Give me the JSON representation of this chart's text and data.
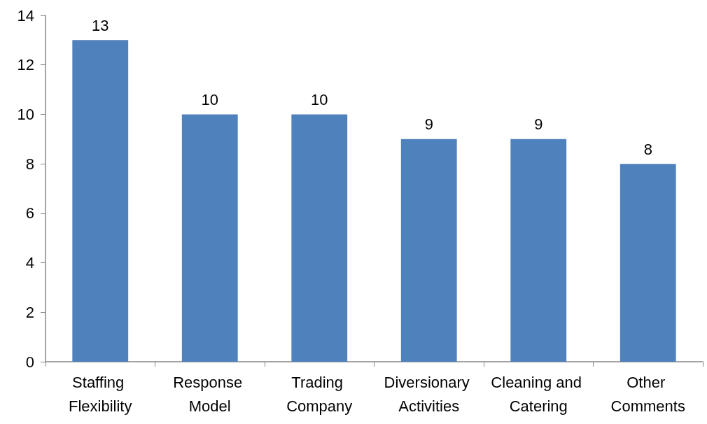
{
  "chart_data": {
    "type": "bar",
    "categories": [
      "Staffing Flexibility",
      "Response Model",
      "Trading Company",
      "Diversionary Activities",
      "Cleaning and Catering",
      "Other Comments"
    ],
    "values": [
      13,
      10,
      10,
      9,
      9,
      8
    ],
    "color": "#4f81bd",
    "ylim": [
      0,
      14
    ],
    "yticks": [
      0,
      2,
      4,
      6,
      8,
      10,
      12,
      14
    ],
    "grid": false,
    "data_labels": true
  }
}
